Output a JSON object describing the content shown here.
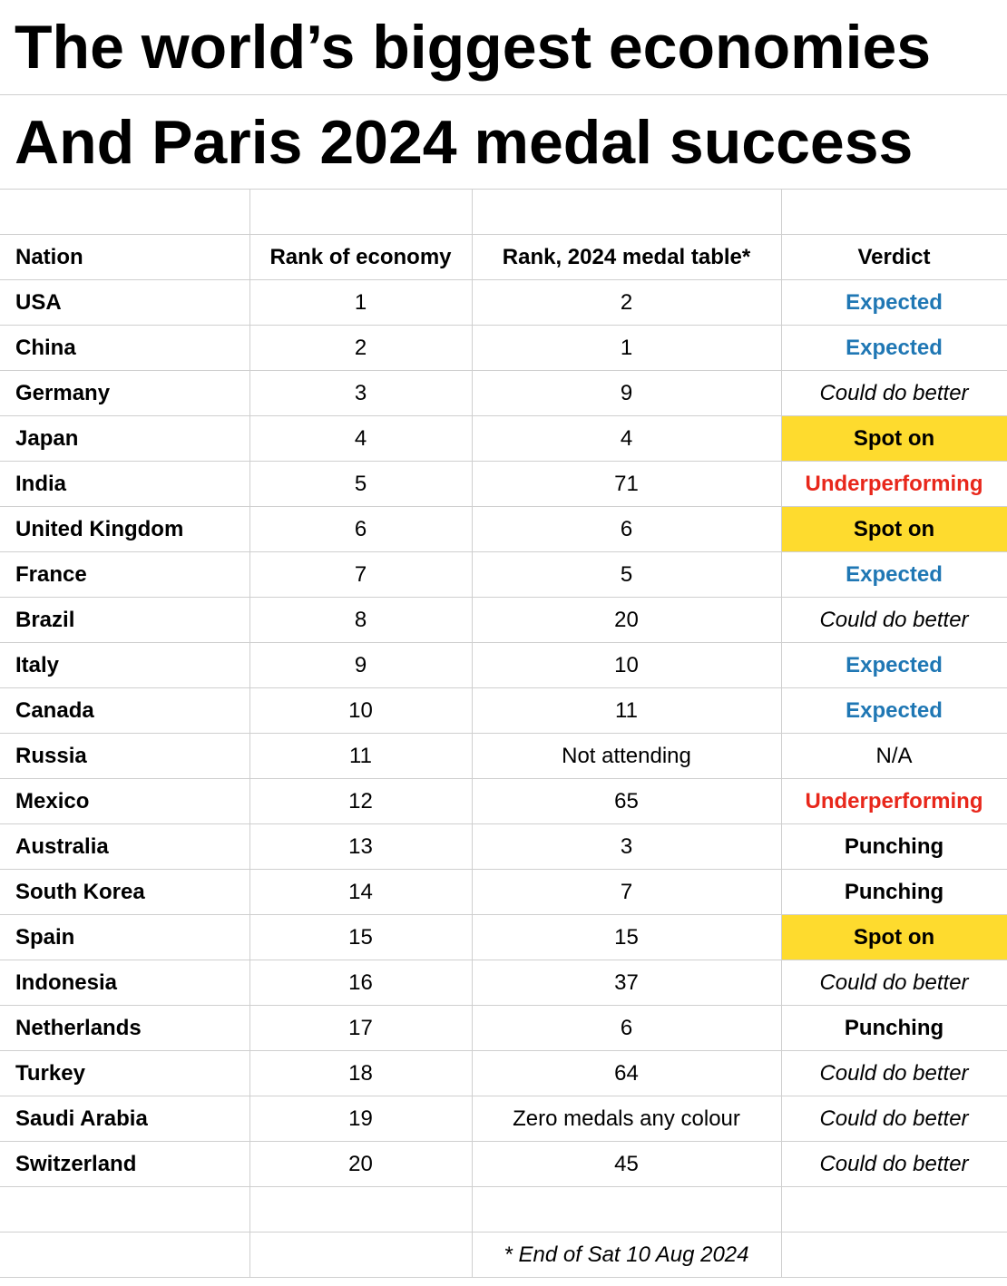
{
  "title": {
    "line1": "The world’s biggest economies",
    "line2": "And Paris 2024 medal success"
  },
  "table": {
    "columns": [
      "Nation",
      "Rank of economy",
      "Rank, 2024 medal table*",
      "Verdict"
    ],
    "rows": [
      {
        "nation": "USA",
        "economy_rank": "1",
        "medal_rank": "2",
        "verdict": "Expected",
        "style": "expected"
      },
      {
        "nation": "China",
        "economy_rank": "2",
        "medal_rank": "1",
        "verdict": "Expected",
        "style": "expected"
      },
      {
        "nation": "Germany",
        "economy_rank": "3",
        "medal_rank": "9",
        "verdict": "Could do better",
        "style": "could"
      },
      {
        "nation": "Japan",
        "economy_rank": "4",
        "medal_rank": "4",
        "verdict": "Spot on",
        "style": "spot"
      },
      {
        "nation": "India",
        "economy_rank": "5",
        "medal_rank": "71",
        "verdict": "Underperforming",
        "style": "under"
      },
      {
        "nation": "United Kingdom",
        "economy_rank": "6",
        "medal_rank": "6",
        "verdict": "Spot on",
        "style": "spot"
      },
      {
        "nation": "France",
        "economy_rank": "7",
        "medal_rank": "5",
        "verdict": "Expected",
        "style": "expected"
      },
      {
        "nation": "Brazil",
        "economy_rank": "8",
        "medal_rank": "20",
        "verdict": "Could do better",
        "style": "could"
      },
      {
        "nation": "Italy",
        "economy_rank": "9",
        "medal_rank": "10",
        "verdict": "Expected",
        "style": "expected"
      },
      {
        "nation": "Canada",
        "economy_rank": "10",
        "medal_rank": "11",
        "verdict": "Expected",
        "style": "expected"
      },
      {
        "nation": "Russia",
        "economy_rank": "11",
        "medal_rank": "Not attending",
        "verdict": "N/A",
        "style": "na"
      },
      {
        "nation": "Mexico",
        "economy_rank": "12",
        "medal_rank": "65",
        "verdict": "Underperforming",
        "style": "under"
      },
      {
        "nation": "Australia",
        "economy_rank": "13",
        "medal_rank": "3",
        "verdict": "Punching",
        "style": "punch"
      },
      {
        "nation": "South Korea",
        "economy_rank": "14",
        "medal_rank": "7",
        "verdict": "Punching",
        "style": "punch"
      },
      {
        "nation": "Spain",
        "economy_rank": "15",
        "medal_rank": "15",
        "verdict": "Spot on",
        "style": "spot"
      },
      {
        "nation": "Indonesia",
        "economy_rank": "16",
        "medal_rank": "37",
        "verdict": "Could do better",
        "style": "could"
      },
      {
        "nation": "Netherlands",
        "economy_rank": "17",
        "medal_rank": "6",
        "verdict": "Punching",
        "style": "punch"
      },
      {
        "nation": "Turkey",
        "economy_rank": "18",
        "medal_rank": "64",
        "verdict": "Could do better",
        "style": "could"
      },
      {
        "nation": "Saudi Arabia",
        "economy_rank": "19",
        "medal_rank": "Zero medals any colour",
        "verdict": "Could do better",
        "style": "could"
      },
      {
        "nation": "Switzerland",
        "economy_rank": "20",
        "medal_rank": "45",
        "verdict": "Could do better",
        "style": "could"
      }
    ]
  },
  "footnote": "* End of Sat 10 Aug 2024",
  "colors": {
    "expected": "#1f77b4",
    "underperforming": "#e8271b",
    "spot_on_fill": "#fedb2e",
    "gridline": "#cfcfcf"
  }
}
